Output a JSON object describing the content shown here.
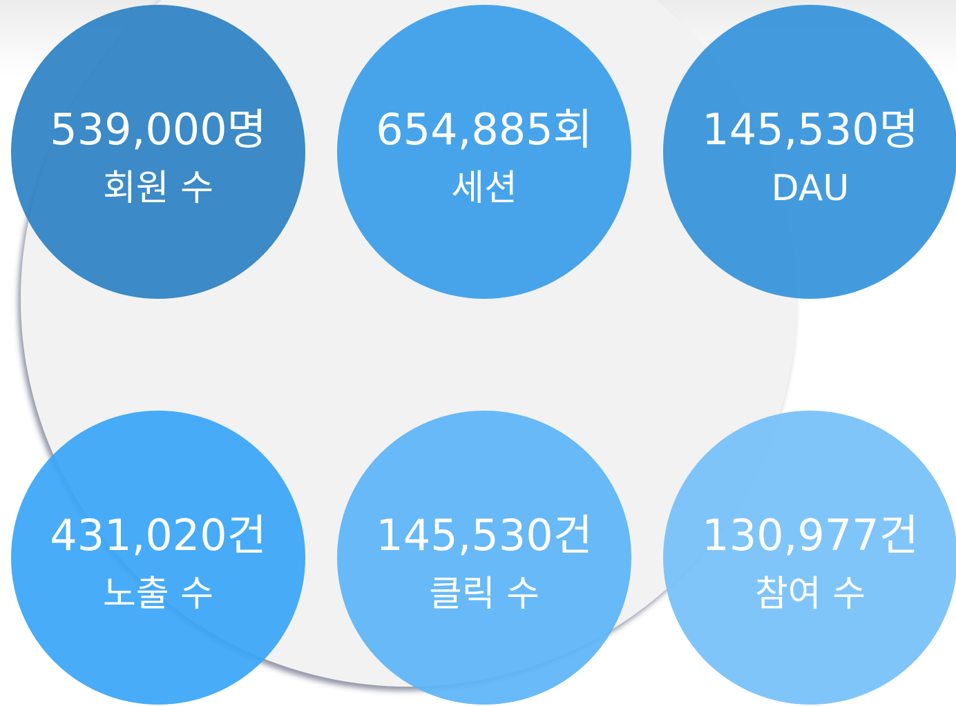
{
  "items": [
    {
      "value": "539,000명",
      "label": "회원 수"
    },
    {
      "value": "654,885회",
      "label": "세션"
    },
    {
      "value": "145,530명",
      "label": "DAU"
    },
    {
      "value": "431,020건",
      "label": "노출 수"
    },
    {
      "value": "145,530건",
      "label": "클릭 수"
    },
    {
      "value": "130,977건",
      "label": "참여 수"
    }
  ]
}
